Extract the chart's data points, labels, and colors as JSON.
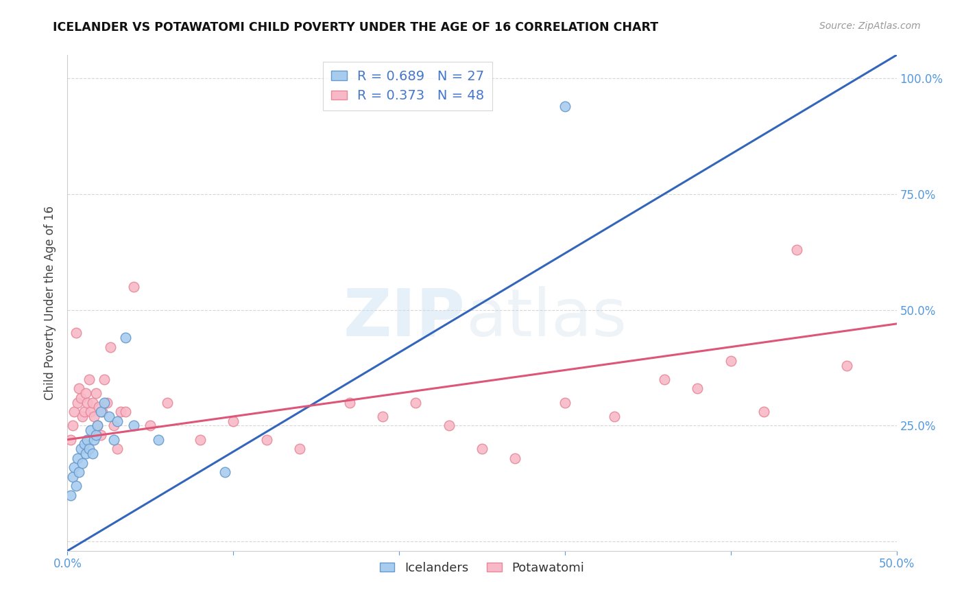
{
  "title": "ICELANDER VS POTAWATOMI CHILD POVERTY UNDER THE AGE OF 16 CORRELATION CHART",
  "source": "Source: ZipAtlas.com",
  "ylabel": "Child Poverty Under the Age of 16",
  "xlim": [
    0.0,
    0.5
  ],
  "ylim": [
    -0.02,
    1.05
  ],
  "background_color": "#ffffff",
  "grid_color": "#cccccc",
  "icelander_fill": "#a8ccee",
  "icelander_edge": "#6699cc",
  "potawatomi_fill": "#f8b8c8",
  "potawatomi_edge": "#e88898",
  "icelander_line_color": "#3366bb",
  "potawatomi_line_color": "#dd5577",
  "legend_text_color": "#4477cc",
  "axis_tick_color": "#5599dd",
  "title_color": "#111111",
  "source_color": "#999999",
  "ylabel_color": "#444444",
  "legend_R_icelander": "R = 0.689",
  "legend_N_icelander": "N = 27",
  "legend_R_potawatomi": "R = 0.373",
  "legend_N_potawatomi": "N = 48",
  "ice_x": [
    0.002,
    0.003,
    0.004,
    0.005,
    0.006,
    0.007,
    0.008,
    0.009,
    0.01,
    0.011,
    0.012,
    0.013,
    0.014,
    0.015,
    0.016,
    0.017,
    0.018,
    0.02,
    0.022,
    0.025,
    0.028,
    0.03,
    0.035,
    0.04,
    0.055,
    0.095,
    0.3
  ],
  "ice_y": [
    0.1,
    0.14,
    0.16,
    0.12,
    0.18,
    0.15,
    0.2,
    0.17,
    0.21,
    0.19,
    0.22,
    0.2,
    0.24,
    0.19,
    0.22,
    0.23,
    0.25,
    0.28,
    0.3,
    0.27,
    0.22,
    0.26,
    0.44,
    0.25,
    0.22,
    0.15,
    0.94
  ],
  "pot_x": [
    0.002,
    0.003,
    0.004,
    0.005,
    0.006,
    0.007,
    0.008,
    0.009,
    0.01,
    0.011,
    0.012,
    0.013,
    0.014,
    0.015,
    0.016,
    0.017,
    0.018,
    0.019,
    0.02,
    0.021,
    0.022,
    0.024,
    0.026,
    0.028,
    0.03,
    0.032,
    0.035,
    0.04,
    0.05,
    0.06,
    0.08,
    0.1,
    0.12,
    0.14,
    0.17,
    0.19,
    0.21,
    0.23,
    0.25,
    0.27,
    0.3,
    0.33,
    0.36,
    0.38,
    0.4,
    0.42,
    0.44,
    0.47
  ],
  "pot_y": [
    0.22,
    0.25,
    0.28,
    0.45,
    0.3,
    0.33,
    0.31,
    0.27,
    0.28,
    0.32,
    0.3,
    0.35,
    0.28,
    0.3,
    0.27,
    0.32,
    0.25,
    0.29,
    0.23,
    0.28,
    0.35,
    0.3,
    0.42,
    0.25,
    0.2,
    0.28,
    0.28,
    0.55,
    0.25,
    0.3,
    0.22,
    0.26,
    0.22,
    0.2,
    0.3,
    0.27,
    0.3,
    0.25,
    0.2,
    0.18,
    0.3,
    0.27,
    0.35,
    0.33,
    0.39,
    0.28,
    0.63,
    0.38
  ],
  "ice_line_x": [
    0.0,
    0.5
  ],
  "ice_line_y": [
    -0.02,
    1.05
  ],
  "pot_line_x": [
    0.0,
    0.5
  ],
  "pot_line_y": [
    0.22,
    0.47
  ]
}
